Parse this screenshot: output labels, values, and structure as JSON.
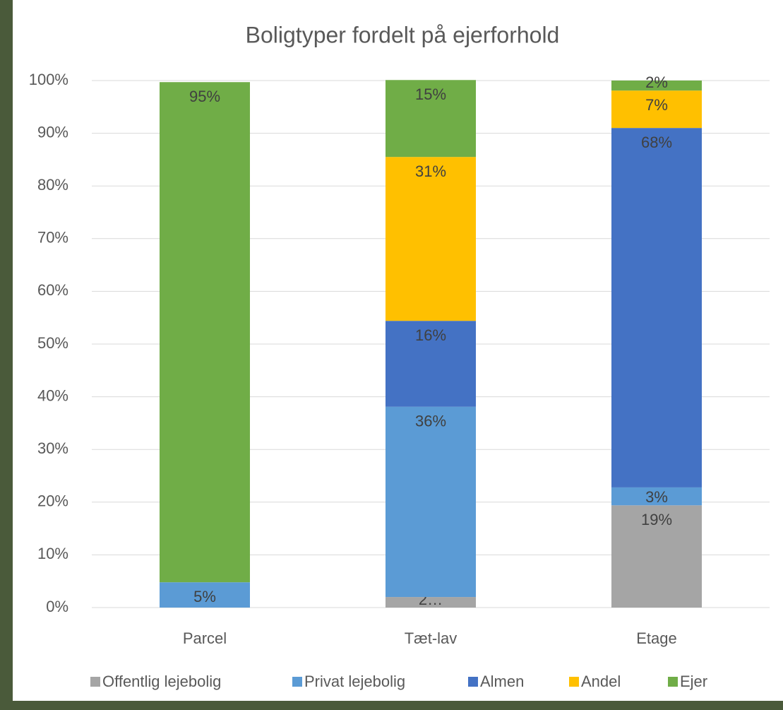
{
  "chart_data": {
    "type": "stacked-bar",
    "title": "Boligtyper fordelt på ejerforhold",
    "categories": [
      "Parcel",
      "Tæt-lav",
      "Etage"
    ],
    "ylim": [
      0,
      100
    ],
    "yticks": [
      {
        "value": 0,
        "label": "0%"
      },
      {
        "value": 10,
        "label": "10%"
      },
      {
        "value": 20,
        "label": "20%"
      },
      {
        "value": 30,
        "label": "30%"
      },
      {
        "value": 40,
        "label": "40%"
      },
      {
        "value": 50,
        "label": "50%"
      },
      {
        "value": 60,
        "label": "60%"
      },
      {
        "value": 70,
        "label": "70%"
      },
      {
        "value": 80,
        "label": "80%"
      },
      {
        "value": 90,
        "label": "90%"
      },
      {
        "value": 100,
        "label": "100%"
      }
    ],
    "grid": true,
    "series": [
      {
        "name": "Offentlig lejebolig",
        "color": "#a5a5a5",
        "values": [
          0,
          2.0,
          19.4
        ],
        "value_labels": [
          null,
          "2…",
          "19%"
        ]
      },
      {
        "name": "Privat lejebolig",
        "color": "#5b9bd5",
        "values": [
          4.8,
          36.1,
          3.4
        ],
        "value_labels": [
          "5%",
          "36%",
          "3%"
        ]
      },
      {
        "name": "Almen",
        "color": "#4472c4",
        "values": [
          0,
          16.3,
          68.2
        ],
        "value_labels": [
          null,
          "16%",
          "68%"
        ]
      },
      {
        "name": "Andel",
        "color": "#ffc000",
        "values": [
          0,
          31.1,
          7.1
        ],
        "value_labels": [
          null,
          "31%",
          "7%"
        ]
      },
      {
        "name": "Ejer",
        "color": "#70ad47",
        "values": [
          94.9,
          14.6,
          1.9
        ],
        "value_labels": [
          "95%",
          "15%",
          "2%"
        ]
      }
    ]
  }
}
